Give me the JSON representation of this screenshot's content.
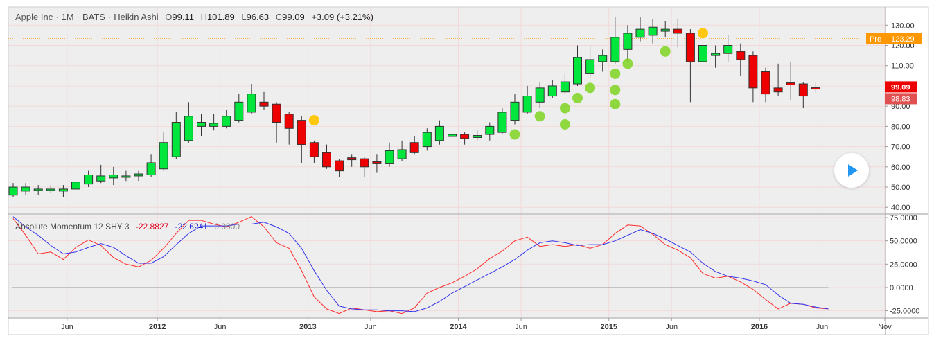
{
  "header": {
    "symbol": "Apple Inc",
    "interval": "1M",
    "exchange": "BATS",
    "chart_style": "Heikin Ashi",
    "open_label": "O",
    "open": "99.11",
    "high_label": "H",
    "high": "101.89",
    "low_label": "L",
    "low": "96.63",
    "close_label": "C",
    "close": "99.09",
    "change": "+3.09 (+3.21%)"
  },
  "indicator": {
    "name": "Absolute Momentum 12 SHY 3",
    "value_red": "-22.8827",
    "value_blue": "-22.6241",
    "value_zero": "0.0000"
  },
  "badges": {
    "pre_label": "Pre",
    "pre_value": "123.29",
    "close_badge": "99.09",
    "ha_badge": "98.83"
  },
  "colors": {
    "up": "#00e63c",
    "down": "#ee0000",
    "signal_green": "#7ed321",
    "signal_yellow": "#ffc400",
    "pre": "#ff9800",
    "momentum_red": "#ff2a2a",
    "momentum_blue": "#3333ee",
    "grid": "#f2d9d9",
    "background": "#eeeeee"
  },
  "chart_data": [
    {
      "type": "candlestick",
      "name": "Apple Inc 1M BATS Heikin Ashi",
      "x_tick_labels": [
        "Jun",
        "2012",
        "Jun",
        "2013",
        "Jun",
        "2014",
        "Jun",
        "2015",
        "Jun",
        "2016",
        "Jun",
        "Nov"
      ],
      "y_ticks": [
        40,
        50,
        60,
        70,
        80,
        90,
        100,
        110,
        120,
        130
      ],
      "y_tick_labels": [
        "40.00",
        "50.00",
        "60.00",
        "70.00",
        "80.00",
        "90.00",
        "100.00",
        "110.00",
        "120.00",
        "130.00"
      ],
      "ylim": [
        37,
        139
      ],
      "pre_market_level": 123.29,
      "candles": [
        {
          "o": 46,
          "c": 50,
          "h": 52,
          "l": 45
        },
        {
          "o": 48,
          "c": 50,
          "h": 52,
          "l": 46
        },
        {
          "o": 48.5,
          "c": 49,
          "h": 51,
          "l": 46
        },
        {
          "o": 48.5,
          "c": 49,
          "h": 51,
          "l": 47
        },
        {
          "o": 48,
          "c": 49,
          "h": 51,
          "l": 45
        },
        {
          "o": 49,
          "c": 52.5,
          "h": 57.5,
          "l": 48
        },
        {
          "o": 51.5,
          "c": 56,
          "h": 58,
          "l": 50
        },
        {
          "o": 53,
          "c": 55.5,
          "h": 61,
          "l": 52
        },
        {
          "o": 54.5,
          "c": 56,
          "h": 60,
          "l": 51
        },
        {
          "o": 55,
          "c": 55.5,
          "h": 58,
          "l": 53
        },
        {
          "o": 55.5,
          "c": 56.5,
          "h": 58,
          "l": 53
        },
        {
          "o": 56,
          "c": 62,
          "h": 66,
          "l": 55
        },
        {
          "o": 59,
          "c": 72,
          "h": 77,
          "l": 58
        },
        {
          "o": 65,
          "c": 82,
          "h": 87,
          "l": 64
        },
        {
          "o": 73,
          "c": 85,
          "h": 92,
          "l": 72
        },
        {
          "o": 80,
          "c": 82,
          "h": 86,
          "l": 75
        },
        {
          "o": 80,
          "c": 81.5,
          "h": 86,
          "l": 78
        },
        {
          "o": 80,
          "c": 85,
          "h": 88,
          "l": 79
        },
        {
          "o": 83,
          "c": 92,
          "h": 96,
          "l": 82
        },
        {
          "o": 87,
          "c": 96,
          "h": 101,
          "l": 86
        },
        {
          "o": 92,
          "c": 90,
          "h": 97,
          "l": 88
        },
        {
          "o": 91,
          "c": 82,
          "h": 92,
          "l": 72
        },
        {
          "o": 86,
          "c": 79,
          "h": 87,
          "l": 71
        },
        {
          "o": 83,
          "c": 71,
          "h": 85,
          "l": 62
        },
        {
          "o": 72,
          "c": 65,
          "h": 73,
          "l": 62
        },
        {
          "o": 67,
          "c": 60,
          "h": 71,
          "l": 59
        },
        {
          "o": 63,
          "c": 58,
          "h": 64,
          "l": 55
        },
        {
          "o": 64.5,
          "c": 63.5,
          "h": 66,
          "l": 60
        },
        {
          "o": 64,
          "c": 60,
          "h": 65,
          "l": 55
        },
        {
          "o": 62.5,
          "c": 61.5,
          "h": 66,
          "l": 57
        },
        {
          "o": 61.5,
          "c": 68,
          "h": 72,
          "l": 60
        },
        {
          "o": 64,
          "c": 68.5,
          "h": 73,
          "l": 63
        },
        {
          "o": 72,
          "c": 67,
          "h": 75,
          "l": 66
        },
        {
          "o": 70,
          "c": 77,
          "h": 79,
          "l": 68
        },
        {
          "o": 73,
          "c": 80,
          "h": 83,
          "l": 71
        },
        {
          "o": 75,
          "c": 76,
          "h": 78,
          "l": 71
        },
        {
          "o": 76,
          "c": 74,
          "h": 77,
          "l": 71
        },
        {
          "o": 74.5,
          "c": 75.5,
          "h": 78,
          "l": 73
        },
        {
          "o": 76,
          "c": 80,
          "h": 82,
          "l": 73
        },
        {
          "o": 77,
          "c": 87,
          "h": 89,
          "l": 76
        },
        {
          "o": 83,
          "c": 92,
          "h": 96,
          "l": 81
        },
        {
          "o": 87,
          "c": 95,
          "h": 100,
          "l": 86
        },
        {
          "o": 92,
          "c": 99,
          "h": 102,
          "l": 89
        },
        {
          "o": 95,
          "c": 100,
          "h": 103,
          "l": 94
        },
        {
          "o": 97,
          "c": 102,
          "h": 106,
          "l": 96
        },
        {
          "o": 101,
          "c": 114,
          "h": 120,
          "l": 100
        },
        {
          "o": 106,
          "c": 113,
          "h": 120,
          "l": 104
        },
        {
          "o": 112,
          "c": 115,
          "h": 118,
          "l": 107
        },
        {
          "o": 112,
          "c": 124,
          "h": 134,
          "l": 111
        },
        {
          "o": 118,
          "c": 126,
          "h": 130,
          "l": 112
        },
        {
          "o": 124,
          "c": 128,
          "h": 134,
          "l": 122
        },
        {
          "o": 125,
          "c": 129,
          "h": 133,
          "l": 121
        },
        {
          "o": 127,
          "c": 128,
          "h": 132,
          "l": 124
        },
        {
          "o": 128,
          "c": 126,
          "h": 133,
          "l": 119
        },
        {
          "o": 126,
          "c": 112,
          "h": 128,
          "l": 92
        },
        {
          "o": 112,
          "c": 120,
          "h": 122,
          "l": 107
        },
        {
          "o": 115,
          "c": 116,
          "h": 120,
          "l": 109
        },
        {
          "o": 116,
          "c": 120,
          "h": 125,
          "l": 112
        },
        {
          "o": 117,
          "c": 113,
          "h": 121,
          "l": 105
        },
        {
          "o": 115,
          "c": 99,
          "h": 117,
          "l": 92
        },
        {
          "o": 107,
          "c": 96,
          "h": 109,
          "l": 92
        },
        {
          "o": 99,
          "c": 97,
          "h": 111,
          "l": 95
        },
        {
          "o": 101.5,
          "c": 100.5,
          "h": 112,
          "l": 93
        },
        {
          "o": 101,
          "c": 95,
          "h": 102,
          "l": 89
        },
        {
          "o": 99.11,
          "c": 99.09,
          "h": 101.89,
          "l": 96.63
        }
      ],
      "green_signals": [
        {
          "index": 40,
          "value": 76
        },
        {
          "index": 42,
          "value": 85
        },
        {
          "index": 44,
          "value": 81
        },
        {
          "index": 44,
          "value": 89
        },
        {
          "index": 45,
          "value": 94
        },
        {
          "index": 46,
          "value": 99
        },
        {
          "index": 48,
          "value": 91
        },
        {
          "index": 48,
          "value": 98
        },
        {
          "index": 48,
          "value": 106
        },
        {
          "index": 49,
          "value": 111
        },
        {
          "index": 52,
          "value": 117
        }
      ],
      "yellow_signals": [
        {
          "index": 24,
          "value": 83
        },
        {
          "index": 55,
          "value": 126
        }
      ]
    },
    {
      "type": "line",
      "name": "Absolute Momentum 12 SHY 3",
      "y_ticks": [
        -25,
        0,
        25,
        50,
        75
      ],
      "y_tick_labels": [
        "-25.0000",
        "0.0000",
        "25.0000",
        "50.0000",
        "75.0000"
      ],
      "ylim": [
        -32,
        78
      ],
      "zero_line": 0,
      "series": [
        {
          "color": "red",
          "values": [
            74,
            56,
            36,
            38,
            30,
            43,
            51,
            45,
            32,
            25,
            22,
            29,
            42,
            58,
            72,
            72,
            68,
            65,
            70,
            76,
            65,
            48,
            42,
            18,
            -10,
            -23,
            -28,
            -22,
            -24,
            -26,
            -25,
            -28,
            -22,
            -6,
            0,
            5,
            12,
            20,
            31,
            39,
            50,
            54,
            44,
            46,
            44,
            46,
            42,
            46,
            58,
            67,
            66,
            57,
            46,
            40,
            32,
            15,
            10,
            12,
            6,
            -2,
            -13,
            -23,
            -17,
            -18,
            -22,
            -23
          ]
        },
        {
          "color": "blue",
          "values": [
            76,
            65,
            56,
            45,
            36,
            38,
            43,
            47,
            43,
            34,
            26,
            26,
            33,
            46,
            58,
            66,
            66,
            66,
            68,
            68,
            70,
            65,
            58,
            42,
            18,
            -3,
            -20,
            -23,
            -24,
            -24,
            -25,
            -25,
            -26,
            -22,
            -15,
            -6,
            1,
            8,
            15,
            22,
            30,
            40,
            48,
            50,
            48,
            45,
            46,
            46,
            50,
            56,
            62,
            58,
            52,
            45,
            38,
            26,
            17,
            12,
            10,
            7,
            3,
            -8,
            -17,
            -18,
            -21,
            -23
          ]
        }
      ]
    }
  ]
}
